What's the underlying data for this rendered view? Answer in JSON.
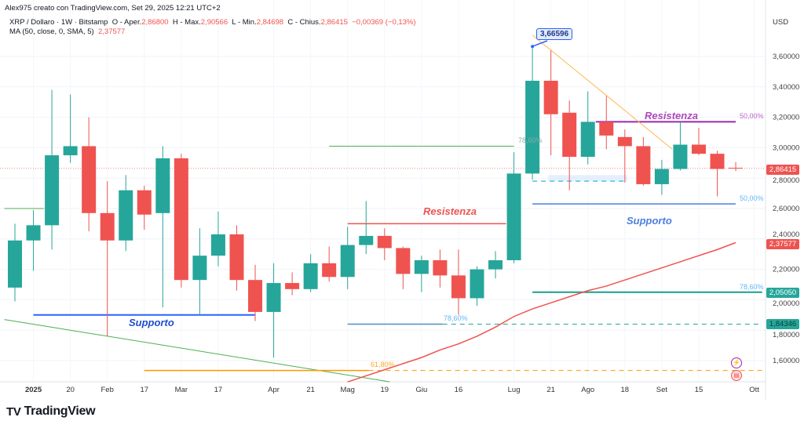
{
  "header": {
    "credit": "Alex975 creato con TradingView.com, Set 29, 2025 12:21 UTC+2",
    "symbol": "XRP / Dollaro · 1W · Bitstamp",
    "open_label": "O - Aper.",
    "open": "2,86800",
    "high_label": "H - Max.",
    "high": "2,90566",
    "low_label": "L - Min.",
    "low": "2,84698",
    "close_label": "C - Chius.",
    "close": "2,86415",
    "change": "−0,00369 (−0,13%)",
    "ma_label": "MA (50, close, 0, SMA, 5)",
    "ma_value": "2,37577"
  },
  "brand": "TradingView",
  "colors": {
    "up": "#26a69a",
    "down": "#ef5350",
    "ma": "#ef5350"
  },
  "chart_data": {
    "type": "candlestick",
    "currency": "USD",
    "ylim": [
      1.45,
      3.8
    ],
    "y_ticks": [
      {
        "v": 1.6,
        "label": "1,60000"
      },
      {
        "v": 1.8,
        "label": "1,80000"
      },
      {
        "v": 2.0,
        "label": "2,00000"
      },
      {
        "v": 2.2,
        "label": "2,20000"
      },
      {
        "v": 2.4,
        "label": "2,40000"
      },
      {
        "v": 2.6,
        "label": "2,60000"
      },
      {
        "v": 2.8,
        "label": "2,80000"
      },
      {
        "v": 3.0,
        "label": "3,00000"
      },
      {
        "v": 3.2,
        "label": "3,20000"
      },
      {
        "v": 3.4,
        "label": "3,40000"
      },
      {
        "v": 3.6,
        "label": "3,60000"
      }
    ],
    "x_ticks": [
      {
        "date": "2025-01-06",
        "label": "2025",
        "bold": true
      },
      {
        "date": "2025-01-20",
        "label": "20"
      },
      {
        "date": "2025-02-03",
        "label": "Feb"
      },
      {
        "date": "2025-02-17",
        "label": "17"
      },
      {
        "date": "2025-03-03",
        "label": "Mar"
      },
      {
        "date": "2025-03-17",
        "label": "17"
      },
      {
        "date": "2025-04-07",
        "label": "Apr"
      },
      {
        "date": "2025-04-21",
        "label": "21"
      },
      {
        "date": "2025-05-05",
        "label": "Mag"
      },
      {
        "date": "2025-05-19",
        "label": "19"
      },
      {
        "date": "2025-06-02",
        "label": "Giu"
      },
      {
        "date": "2025-06-16",
        "label": "16"
      },
      {
        "date": "2025-07-07",
        "label": "Lug"
      },
      {
        "date": "2025-07-21",
        "label": "21"
      },
      {
        "date": "2025-08-04",
        "label": "Ago"
      },
      {
        "date": "2025-08-18",
        "label": "18"
      },
      {
        "date": "2025-09-01",
        "label": "Set"
      },
      {
        "date": "2025-09-15",
        "label": "15"
      },
      {
        "date": "2025-10-06",
        "label": "Ott"
      }
    ],
    "candles": [
      [
        "2024-12-30",
        2.08,
        2.5,
        1.99,
        2.39
      ],
      [
        "2025-01-06",
        2.39,
        2.59,
        2.19,
        2.49
      ],
      [
        "2025-01-13",
        2.49,
        3.38,
        2.33,
        2.95
      ],
      [
        "2025-01-20",
        2.95,
        3.35,
        2.9,
        3.01
      ],
      [
        "2025-01-27",
        3.01,
        3.2,
        2.45,
        2.57
      ],
      [
        "2025-02-03",
        2.57,
        2.78,
        1.76,
        2.39
      ],
      [
        "2025-02-10",
        2.39,
        2.82,
        2.32,
        2.72
      ],
      [
        "2025-02-17",
        2.72,
        2.75,
        2.46,
        2.56
      ],
      [
        "2025-02-24",
        2.57,
        3.01,
        1.95,
        2.93
      ],
      [
        "2025-03-03",
        2.93,
        2.96,
        2.08,
        2.13
      ],
      [
        "2025-03-10",
        2.13,
        2.47,
        1.9,
        2.29
      ],
      [
        "2025-03-17",
        2.29,
        2.58,
        2.22,
        2.43
      ],
      [
        "2025-03-24",
        2.43,
        2.49,
        2.06,
        2.13
      ],
      [
        "2025-03-31",
        2.13,
        2.23,
        1.86,
        1.92
      ],
      [
        "2025-04-07",
        1.92,
        2.24,
        1.62,
        2.11
      ],
      [
        "2025-04-14",
        2.11,
        2.18,
        2.03,
        2.07
      ],
      [
        "2025-04-21",
        2.07,
        2.3,
        2.05,
        2.24
      ],
      [
        "2025-04-28",
        2.24,
        2.35,
        2.12,
        2.15
      ],
      [
        "2025-05-05",
        2.15,
        2.48,
        2.07,
        2.36
      ],
      [
        "2025-05-12",
        2.36,
        2.65,
        2.3,
        2.42
      ],
      [
        "2025-05-19",
        2.42,
        2.47,
        2.26,
        2.34
      ],
      [
        "2025-05-26",
        2.34,
        2.35,
        2.07,
        2.17
      ],
      [
        "2025-06-02",
        2.17,
        2.29,
        2.05,
        2.26
      ],
      [
        "2025-06-09",
        2.26,
        2.33,
        2.08,
        2.16
      ],
      [
        "2025-06-16",
        2.16,
        2.33,
        1.9,
        2.01
      ],
      [
        "2025-06-23",
        2.01,
        2.22,
        1.96,
        2.2
      ],
      [
        "2025-06-30",
        2.2,
        2.32,
        2.14,
        2.26
      ],
      [
        "2025-07-07",
        2.26,
        2.97,
        2.24,
        2.83
      ],
      [
        "2025-07-14",
        2.83,
        3.66596,
        2.79,
        3.44
      ],
      [
        "2025-07-21",
        3.44,
        3.64,
        2.95,
        3.22
      ],
      [
        "2025-07-28",
        3.23,
        3.31,
        2.72,
        2.94
      ],
      [
        "2025-08-04",
        2.94,
        3.37,
        2.89,
        3.17
      ],
      [
        "2025-08-11",
        3.17,
        3.34,
        2.99,
        3.08
      ],
      [
        "2025-08-18",
        3.07,
        3.12,
        2.77,
        3.01
      ],
      [
        "2025-08-25",
        3.01,
        3.07,
        2.75,
        2.76
      ],
      [
        "2025-09-01",
        2.76,
        2.92,
        2.69,
        2.86
      ],
      [
        "2025-09-08",
        2.86,
        3.17,
        2.85,
        3.02
      ],
      [
        "2025-09-15",
        3.02,
        3.13,
        2.95,
        2.96
      ],
      [
        "2025-09-22",
        2.96,
        2.98,
        2.68,
        2.86
      ],
      [
        "2025-09-29",
        2.868,
        2.90566,
        2.84698,
        2.86415
      ]
    ],
    "ma": {
      "start": "2025-05-05",
      "values": [
        1.46,
        1.5,
        1.54,
        1.58,
        1.62,
        1.67,
        1.71,
        1.76,
        1.82,
        1.89,
        1.94,
        1.98,
        2.02,
        2.06,
        2.09,
        2.13,
        2.17,
        2.21,
        2.25,
        2.29,
        2.33,
        2.37577
      ]
    },
    "drawings": [
      {
        "kind": "hline",
        "price": 2.6,
        "from": "2024-12-26",
        "to": "2025-01-10",
        "color": "#4caf50"
      },
      {
        "kind": "hline",
        "price": 3.01,
        "from": "2025-04-28",
        "to": "2025-07-07",
        "color": "#4caf50",
        "label": "78,60%"
      },
      {
        "kind": "hline",
        "price": 1.9,
        "from": "2025-01-06",
        "to": "2025-03-31",
        "color": "#2962ff",
        "width": 2
      },
      {
        "kind": "line",
        "p1": 1.87,
        "d1": "2024-12-26",
        "p2": 1.46,
        "d2": "2025-05-21",
        "color": "#4caf50"
      },
      {
        "kind": "hline",
        "price": 1.535,
        "from": "2025-02-17",
        "to": "2025-05-13",
        "color": "#ff9800",
        "width": 1.5
      },
      {
        "kind": "hline",
        "price": 1.535,
        "from": "2025-05-13",
        "to": "2025-10-09",
        "color": "#ff9800",
        "dash": true,
        "label": "61,80%"
      },
      {
        "kind": "hline",
        "price": 1.84,
        "from": "2025-05-05",
        "to": "2025-06-10",
        "color": "#4a90c8",
        "width": 1.5
      },
      {
        "kind": "hline",
        "price": 1.84,
        "from": "2025-06-10",
        "to": "2025-10-09",
        "color": "#26a69a",
        "dash": true,
        "label": "78,60%"
      },
      {
        "kind": "hline",
        "price": 2.05,
        "from": "2025-07-14",
        "to": "2025-10-09",
        "color": "#1b9e8f",
        "width": 2,
        "label": "78,60%"
      },
      {
        "kind": "hline",
        "price": 2.5,
        "from": "2025-05-05",
        "to": "2025-07-04",
        "color": "#ef5350",
        "width": 1.5
      },
      {
        "kind": "hline",
        "price": 3.17,
        "from": "2025-08-07",
        "to": "2025-09-29",
        "color": "#9c27b0",
        "width": 2,
        "label": "50,00%"
      },
      {
        "kind": "hline",
        "price": 2.63,
        "from": "2025-07-14",
        "to": "2025-09-29",
        "color": "#4a7fe0",
        "width": 1.5,
        "label": "50,00%"
      },
      {
        "kind": "hline",
        "price": 2.78,
        "from": "2025-07-14",
        "to": "2025-08-18",
        "color": "#4fc3d7",
        "dash": true,
        "width": 1.5,
        "label": "50%"
      },
      {
        "kind": "line",
        "p1": 3.74,
        "d1": "2025-07-14",
        "p2": 2.99,
        "d2": "2025-09-05",
        "color": "#ffb74d"
      }
    ],
    "annotations": {
      "resistance_1": "Resistenza",
      "resistance_2": "Resistenza",
      "support_1": "Supporto",
      "support_2": "Supporto",
      "high_callout": "3,66596"
    },
    "price_tags": {
      "last": "2,86415",
      "ma": "2,37577",
      "level_1": "2,05050",
      "level_2": "1,84346"
    },
    "fib_labels": {
      "upper_50": "50,00%",
      "lower_50": "50,00%",
      "fib_786_a": "78,60%",
      "fib_786_b": "78,60%",
      "fib_618": "61,80%",
      "fib_786_c": "78,60%"
    }
  }
}
